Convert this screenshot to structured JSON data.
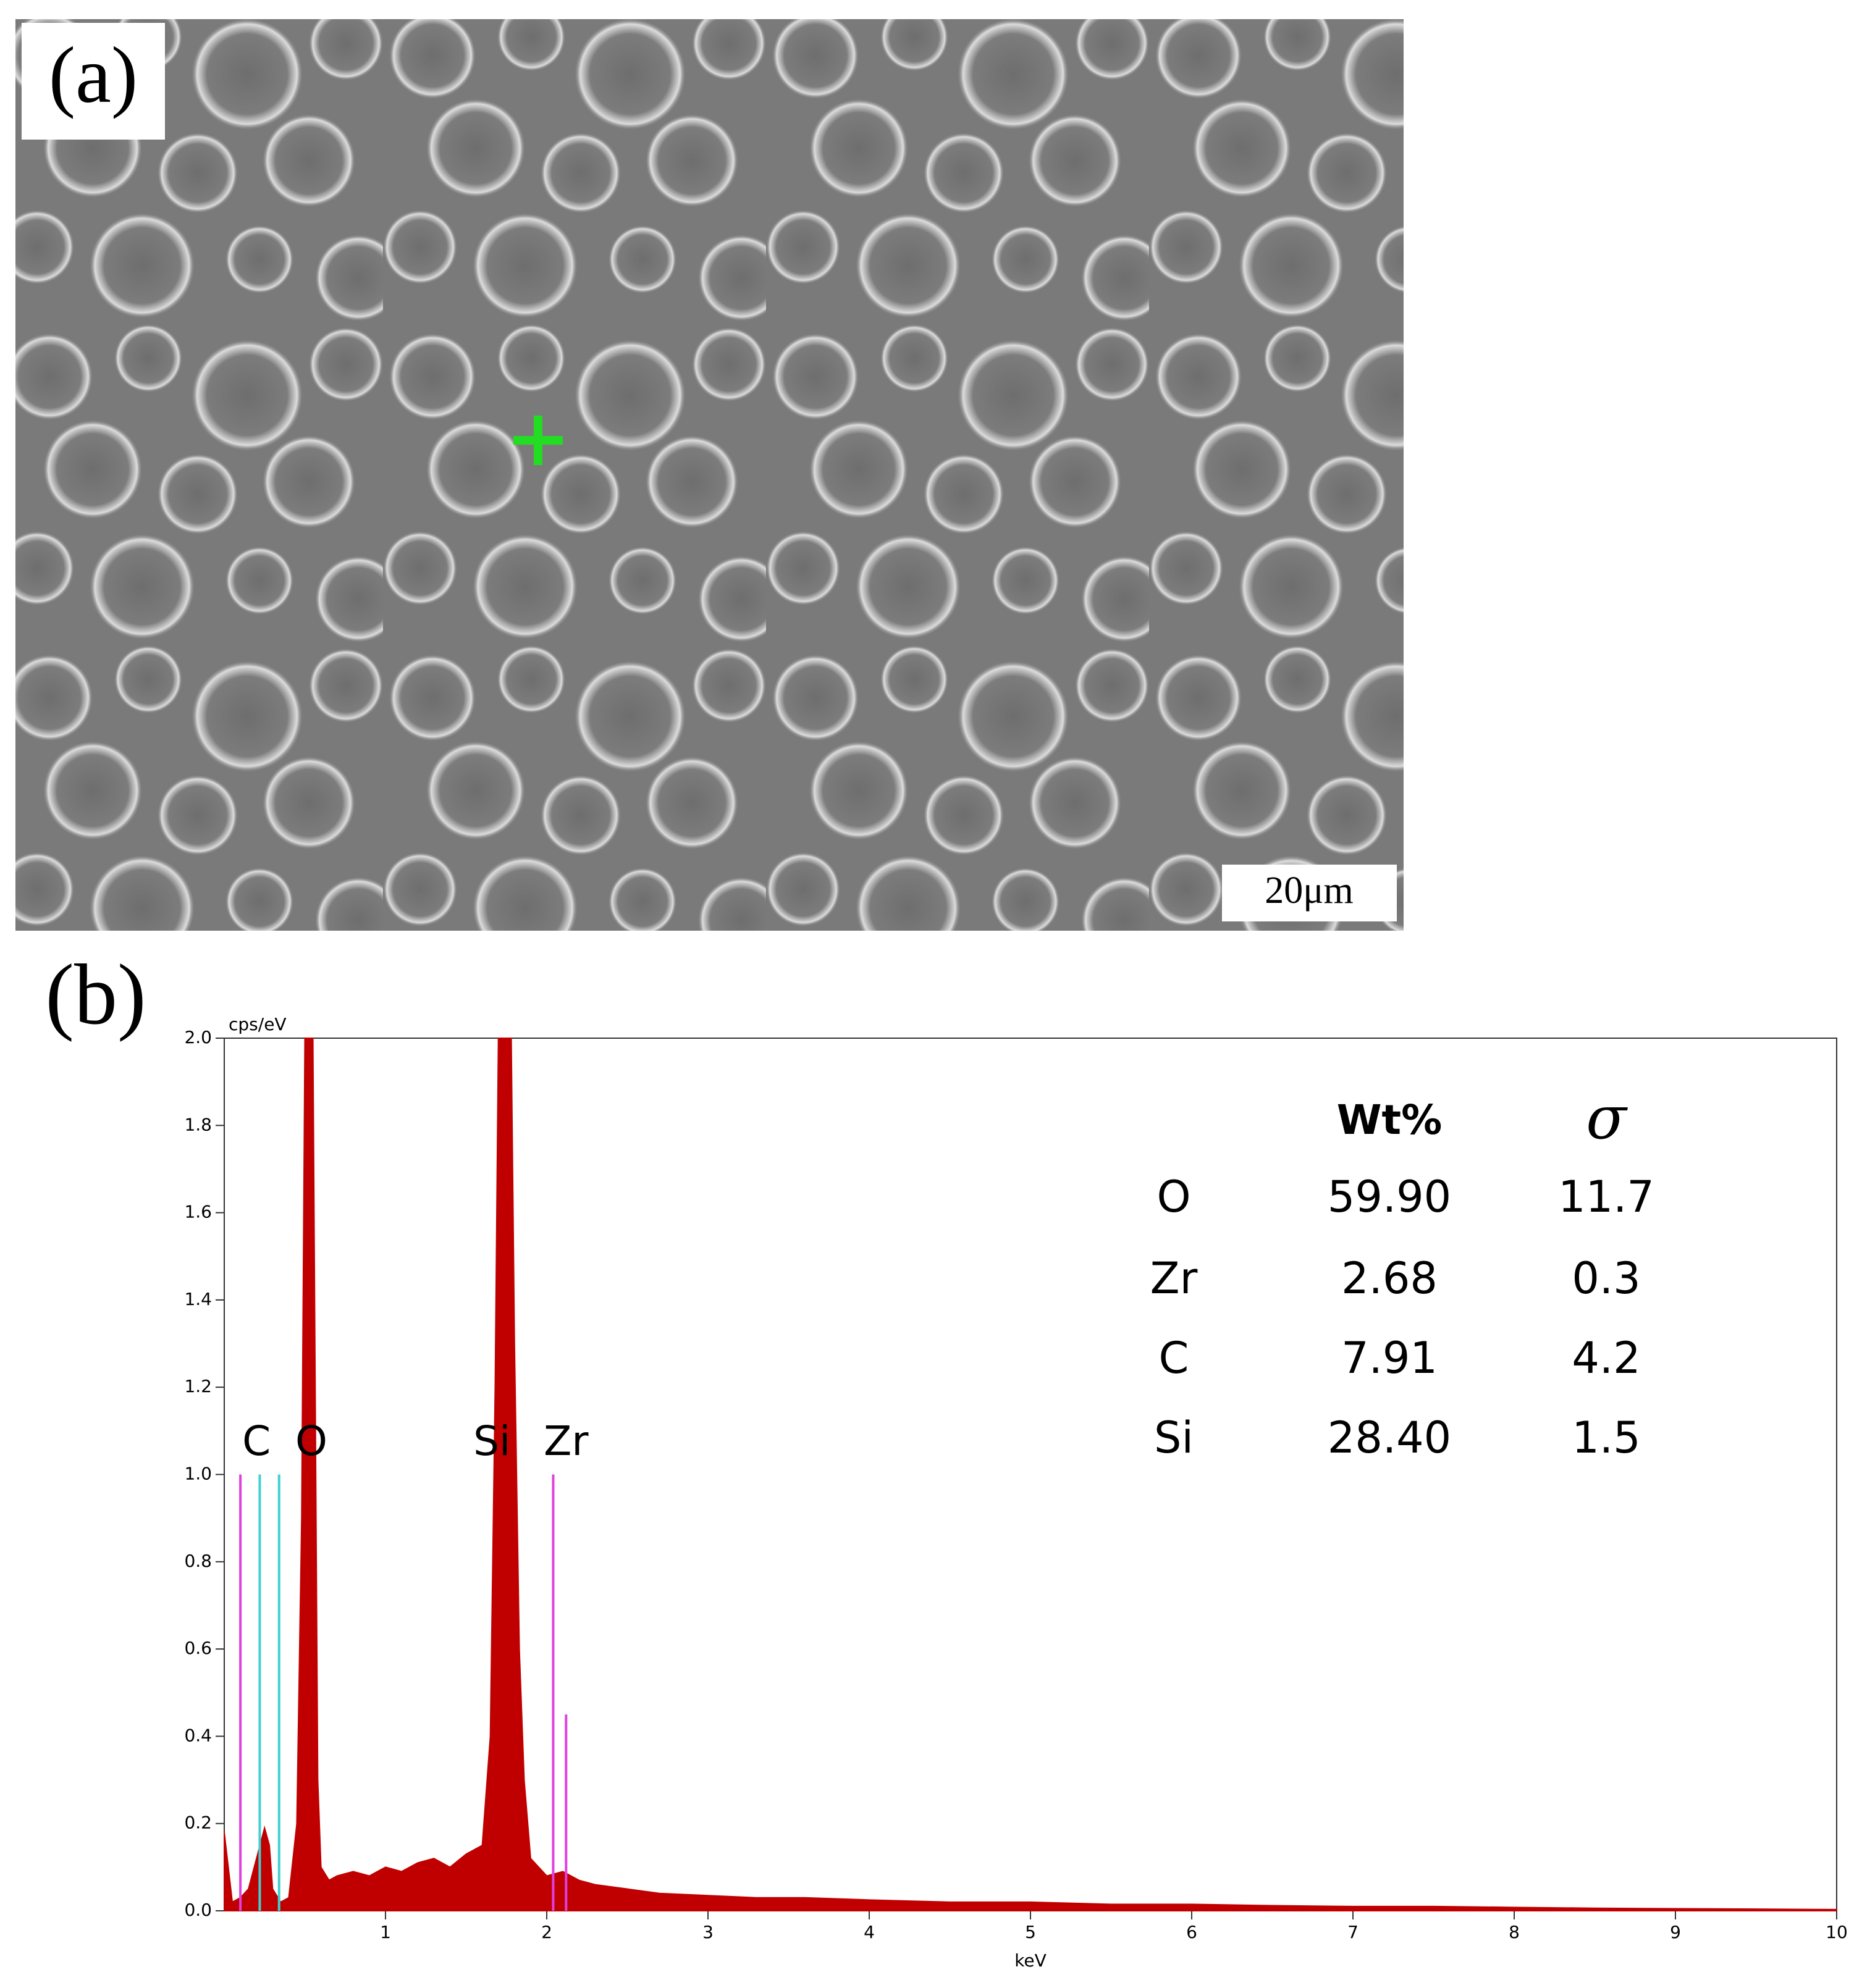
{
  "image_panel": {
    "label": "(a)",
    "scale_bar": "20μm"
  },
  "chart_data": {
    "type": "area",
    "panel_label": "(b)",
    "y_label": "cps/eV",
    "x_label": "keV",
    "color": "#c00000",
    "x": [
      0,
      0.05,
      0.1,
      0.15,
      0.2,
      0.25,
      0.28,
      0.3,
      0.35,
      0.4,
      0.45,
      0.48,
      0.5,
      0.52,
      0.55,
      0.58,
      0.6,
      0.65,
      0.7,
      0.8,
      0.9,
      1.0,
      1.1,
      1.2,
      1.3,
      1.4,
      1.5,
      1.6,
      1.65,
      1.68,
      1.7,
      1.72,
      1.75,
      1.78,
      1.8,
      1.83,
      1.86,
      1.9,
      2.0,
      2.1,
      2.2,
      2.3,
      2.5,
      2.7,
      3.0,
      3.3,
      3.6,
      4.0,
      4.5,
      5.0,
      5.5,
      6.0,
      6.5,
      7.0,
      7.5,
      8.0,
      8.5,
      9.0,
      9.5,
      10.0
    ],
    "values": [
      0.18,
      0.02,
      0.03,
      0.05,
      0.12,
      0.19,
      0.15,
      0.05,
      0.02,
      0.03,
      0.2,
      0.9,
      2.0,
      2.0,
      2.0,
      0.3,
      0.1,
      0.07,
      0.08,
      0.09,
      0.08,
      0.1,
      0.09,
      0.11,
      0.12,
      0.1,
      0.13,
      0.15,
      0.4,
      1.2,
      2.0,
      2.0,
      2.0,
      2.0,
      1.3,
      0.6,
      0.3,
      0.12,
      0.08,
      0.09,
      0.07,
      0.06,
      0.05,
      0.04,
      0.035,
      0.03,
      0.03,
      0.025,
      0.02,
      0.02,
      0.015,
      0.015,
      0.012,
      0.01,
      0.01,
      0.008,
      0.006,
      0.005,
      0.004,
      0.003
    ],
    "xlim": [
      0,
      10
    ],
    "xticks": [
      1,
      2,
      3,
      4,
      5,
      6,
      7,
      8,
      9,
      10
    ],
    "ylim": [
      0,
      2
    ],
    "yticks": [
      {
        "value": 0,
        "label": "0.0"
      },
      0.2,
      0.4,
      0.6,
      0.8,
      {
        "value": 1,
        "label": "1.0"
      },
      1.2,
      1.4,
      1.6,
      1.8,
      {
        "value": 2,
        "label": "2.0"
      }
    ],
    "element_lines": [
      {
        "x": 0.1,
        "height": 1.0,
        "color": "#e040e0"
      },
      {
        "x": 0.22,
        "height": 1.0,
        "color": "#40d0d0"
      },
      {
        "x": 0.34,
        "height": 1.0,
        "color": "#40d0d0"
      },
      {
        "x": 2.04,
        "height": 1.0,
        "color": "#e040e0"
      },
      {
        "x": 2.12,
        "height": 0.45,
        "color": "#e040e0"
      }
    ],
    "peak_labels": [
      {
        "text": "C",
        "x": 0.2,
        "y": 1.07
      },
      {
        "text": "O",
        "x": 0.54,
        "y": 1.07
      },
      {
        "text": "Si",
        "x": 1.66,
        "y": 1.07
      },
      {
        "text": "Zr",
        "x": 2.12,
        "y": 1.07
      }
    ],
    "table": {
      "header": [
        "Wt%",
        "σ"
      ],
      "rows": [
        [
          "O",
          "59.90",
          "11.7"
        ],
        [
          "Zr",
          "2.68",
          "0.3"
        ],
        [
          "C",
          "7.91",
          "4.2"
        ],
        [
          "Si",
          "28.40",
          "1.5"
        ]
      ]
    }
  }
}
